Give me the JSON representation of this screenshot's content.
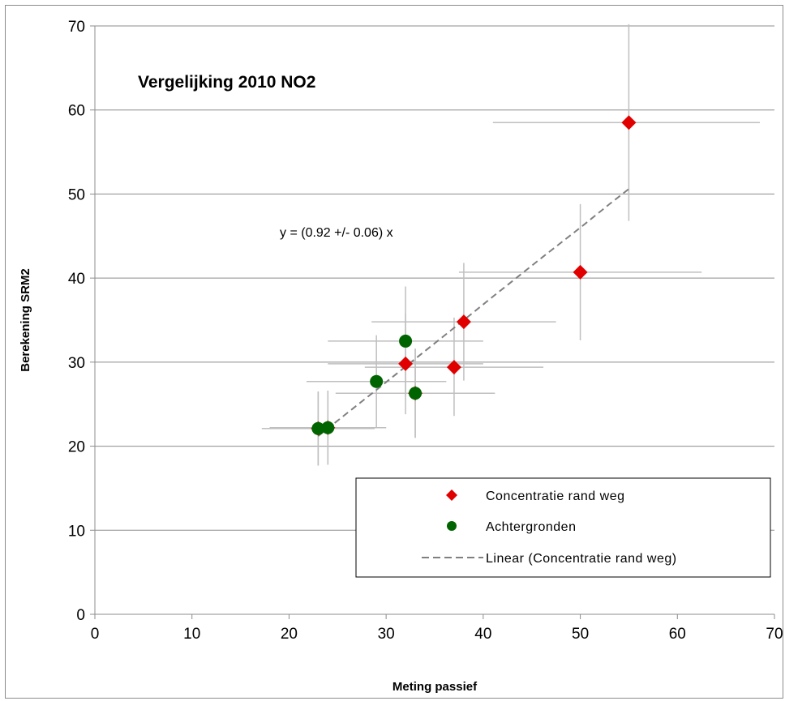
{
  "chart_data": {
    "type": "scatter",
    "title": "Vergelijking 2010 NO2",
    "xlabel": "Meting passief",
    "ylabel": "Berekening SRM2",
    "xlim": [
      0,
      70
    ],
    "ylim": [
      0,
      70
    ],
    "xticks": [
      0,
      10,
      20,
      30,
      40,
      50,
      60,
      70
    ],
    "yticks": [
      0,
      10,
      20,
      30,
      40,
      50,
      60,
      70
    ],
    "grid": "horizontal",
    "annotation": "y  =  (0.92 +/- 0.06) x",
    "legend_position": "bottom-right",
    "series": [
      {
        "name": "Concentratie rand weg",
        "marker": "diamond",
        "color": "#e00000",
        "points": [
          {
            "x": 55,
            "y": 58.5,
            "xerr": [
              41,
              68.5
            ],
            "yerr": [
              46.8,
              70.2
            ]
          },
          {
            "x": 50,
            "y": 40.7,
            "xerr": [
              37.5,
              62.5
            ],
            "yerr": [
              32.6,
              48.8
            ]
          },
          {
            "x": 38,
            "y": 34.8,
            "xerr": [
              28.5,
              47.5
            ],
            "yerr": [
              27.8,
              41.8
            ]
          },
          {
            "x": 37,
            "y": 29.4,
            "xerr": [
              27.8,
              46.2
            ],
            "yerr": [
              23.6,
              35.3
            ]
          },
          {
            "x": 32,
            "y": 29.8,
            "xerr": [
              24,
              40
            ],
            "yerr": [
              23.8,
              35.8
            ]
          },
          {
            "x": 33,
            "y": 26.3,
            "xerr": [
              24.8,
              41.2
            ],
            "yerr": [
              21,
              31.6
            ]
          },
          {
            "x": 24,
            "y": 22.2,
            "xerr": [
              18,
              30
            ],
            "yerr": [
              17.8,
              26.6
            ]
          },
          {
            "x": 23,
            "y": 22.1,
            "xerr": [
              17.2,
              28.8
            ],
            "yerr": [
              17.7,
              26.5
            ]
          }
        ]
      },
      {
        "name": "Achtergronden",
        "marker": "circle",
        "color": "#006400",
        "points": [
          {
            "x": 32,
            "y": 32.5,
            "xerr": [
              24,
              40
            ],
            "yerr": [
              26,
              39
            ]
          },
          {
            "x": 29,
            "y": 27.7,
            "xerr": [
              21.8,
              36.2
            ],
            "yerr": [
              22.2,
              33.2
            ]
          },
          {
            "x": 33,
            "y": 26.3,
            "xerr": [
              24.8,
              41.2
            ],
            "yerr": [
              21,
              31.6
            ]
          },
          {
            "x": 24,
            "y": 22.2,
            "xerr": [
              18,
              30
            ],
            "yerr": [
              17.8,
              26.6
            ]
          },
          {
            "x": 23,
            "y": 22.1,
            "xerr": [
              17.2,
              28.8
            ],
            "yerr": [
              17.7,
              26.5
            ]
          }
        ]
      },
      {
        "name": "Linear (Concentratie rand weg)",
        "style": "dashed",
        "color": "#808080",
        "points": [
          {
            "x": 23,
            "y": 21.2
          },
          {
            "x": 29,
            "y": 26.7
          },
          {
            "x": 33,
            "y": 30.4
          },
          {
            "x": 38,
            "y": 35.0
          },
          {
            "x": 41,
            "y": 37.8
          },
          {
            "x": 46,
            "y": 42.4
          },
          {
            "x": 50,
            "y": 46.0
          },
          {
            "x": 53,
            "y": 48.8
          },
          {
            "x": 55,
            "y": 50.6
          }
        ]
      }
    ]
  },
  "colors": {
    "gridline": "#8c8c8c",
    "errorbar": "#bfbfbf",
    "trend": "#808080",
    "frame": "#8c8c8c"
  }
}
